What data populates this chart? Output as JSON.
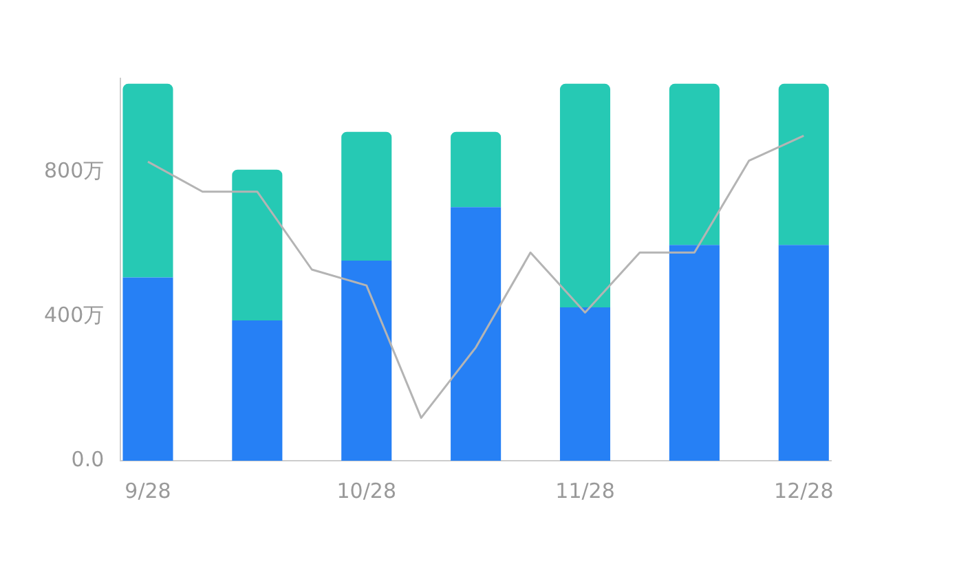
{
  "chart_data": {
    "type": "bar",
    "stacked": true,
    "categories": [
      "9/28",
      null,
      null,
      null,
      "10/28",
      null,
      null,
      null,
      "11/28",
      null,
      null,
      null,
      "12/28"
    ],
    "series": [
      {
        "color": "#2680f5",
        "values": [
          508,
          null,
          389,
          null,
          555,
          null,
          703,
          null,
          425,
          null,
          598,
          null,
          598
        ]
      },
      {
        "color": "#26c9b4",
        "values": [
          537,
          null,
          418,
          null,
          357,
          null,
          209,
          null,
          620,
          null,
          447,
          null,
          447
        ]
      },
      {
        "type": "line",
        "color": "#b4b4b4",
        "values": [
          829,
          746,
          746,
          530,
          486,
          119,
          314,
          577,
          411,
          577,
          577,
          832,
          901
        ]
      }
    ],
    "ylim": [
      0,
      1060
    ],
    "yticks": [
      {
        "value": 0,
        "label": "0.0"
      },
      {
        "value": 400,
        "label": "400万"
      },
      {
        "value": 800,
        "label": "800万"
      }
    ],
    "grid": false,
    "legend": false,
    "marker": "none",
    "line_style": "solid"
  }
}
